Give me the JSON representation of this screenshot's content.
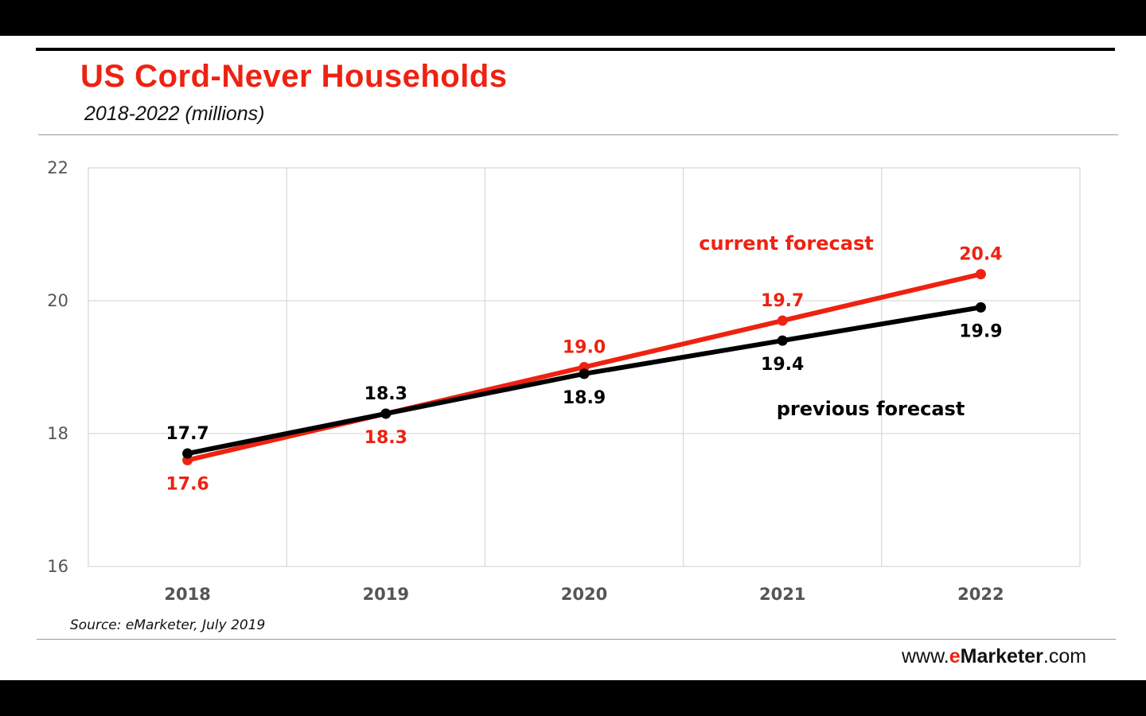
{
  "header": {
    "title": "US Cord-Never Households",
    "subtitle": "2018-2022 (millions)"
  },
  "footer": {
    "source": "Source: eMarketer, July 2019",
    "brand_prefix": "www.",
    "brand_e": "e",
    "brand_name": "Marketer",
    "brand_suffix": ".com"
  },
  "colors": {
    "current": "#ee2211",
    "previous": "#000000",
    "grid": "#d9d9d9"
  },
  "chart_data": {
    "type": "line",
    "title": "US Cord-Never Households",
    "subtitle": "2018-2022 (millions)",
    "xlabel": "",
    "ylabel": "",
    "x": [
      "2018",
      "2019",
      "2020",
      "2021",
      "2022"
    ],
    "ylim": [
      16,
      22
    ],
    "yticks": [
      16,
      18,
      20,
      22
    ],
    "grid": true,
    "series": [
      {
        "name": "current forecast",
        "color": "#ee2211",
        "values": [
          17.6,
          18.3,
          19.0,
          19.7,
          20.4
        ],
        "labels": [
          "17.6",
          "18.3",
          "19.0",
          "19.7",
          "20.4"
        ]
      },
      {
        "name": "previous forecast",
        "color": "#000000",
        "values": [
          17.7,
          18.3,
          18.9,
          19.4,
          19.9
        ],
        "labels": [
          "17.7",
          "18.3",
          "18.9",
          "19.4",
          "19.9"
        ]
      }
    ]
  }
}
